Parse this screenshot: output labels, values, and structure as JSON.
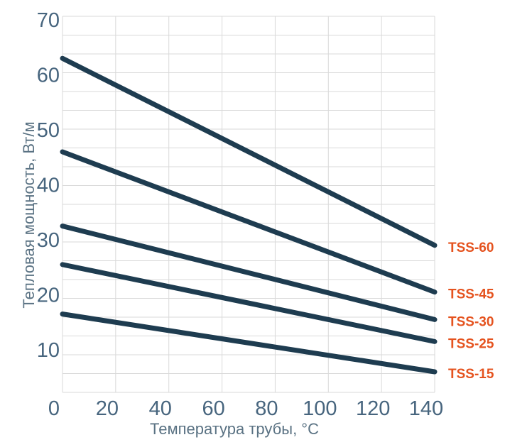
{
  "chart_data": {
    "type": "line",
    "title": "",
    "xlabel": "Температура трубы, °C",
    "ylabel": "Тепловая мощность, Вт/м",
    "xlim": [
      0,
      140
    ],
    "ylim": [
      3.3,
      70
    ],
    "xticks": [
      0,
      20,
      40,
      60,
      80,
      100,
      120,
      140
    ],
    "yticks": [
      70,
      60,
      50,
      40,
      30,
      20,
      10
    ],
    "grid": {
      "shown": true,
      "horizontal_intervals": 20,
      "vertical_step_units": 20
    },
    "legend_position": "right-edge-labels",
    "series": [
      {
        "name": "TSS-60",
        "x": [
          0,
          140
        ],
        "values": [
          63,
          29
        ]
      },
      {
        "name": "TSS-45",
        "x": [
          0,
          140
        ],
        "values": [
          46,
          20.5
        ]
      },
      {
        "name": "TSS-30",
        "x": [
          0,
          140
        ],
        "values": [
          32.5,
          15.5
        ]
      },
      {
        "name": "TSS-25",
        "x": [
          0,
          140
        ],
        "values": [
          25.5,
          11.5
        ]
      },
      {
        "name": "TSS-15",
        "x": [
          0,
          140
        ],
        "values": [
          16.5,
          6
        ]
      }
    ],
    "colors": {
      "line": "#1e3c50",
      "series_label": "#e5531f",
      "grid": "#d9d9d9",
      "tick_text": "#47657e",
      "axis_title_text": "#5a7283",
      "background": "#ffffff"
    }
  }
}
